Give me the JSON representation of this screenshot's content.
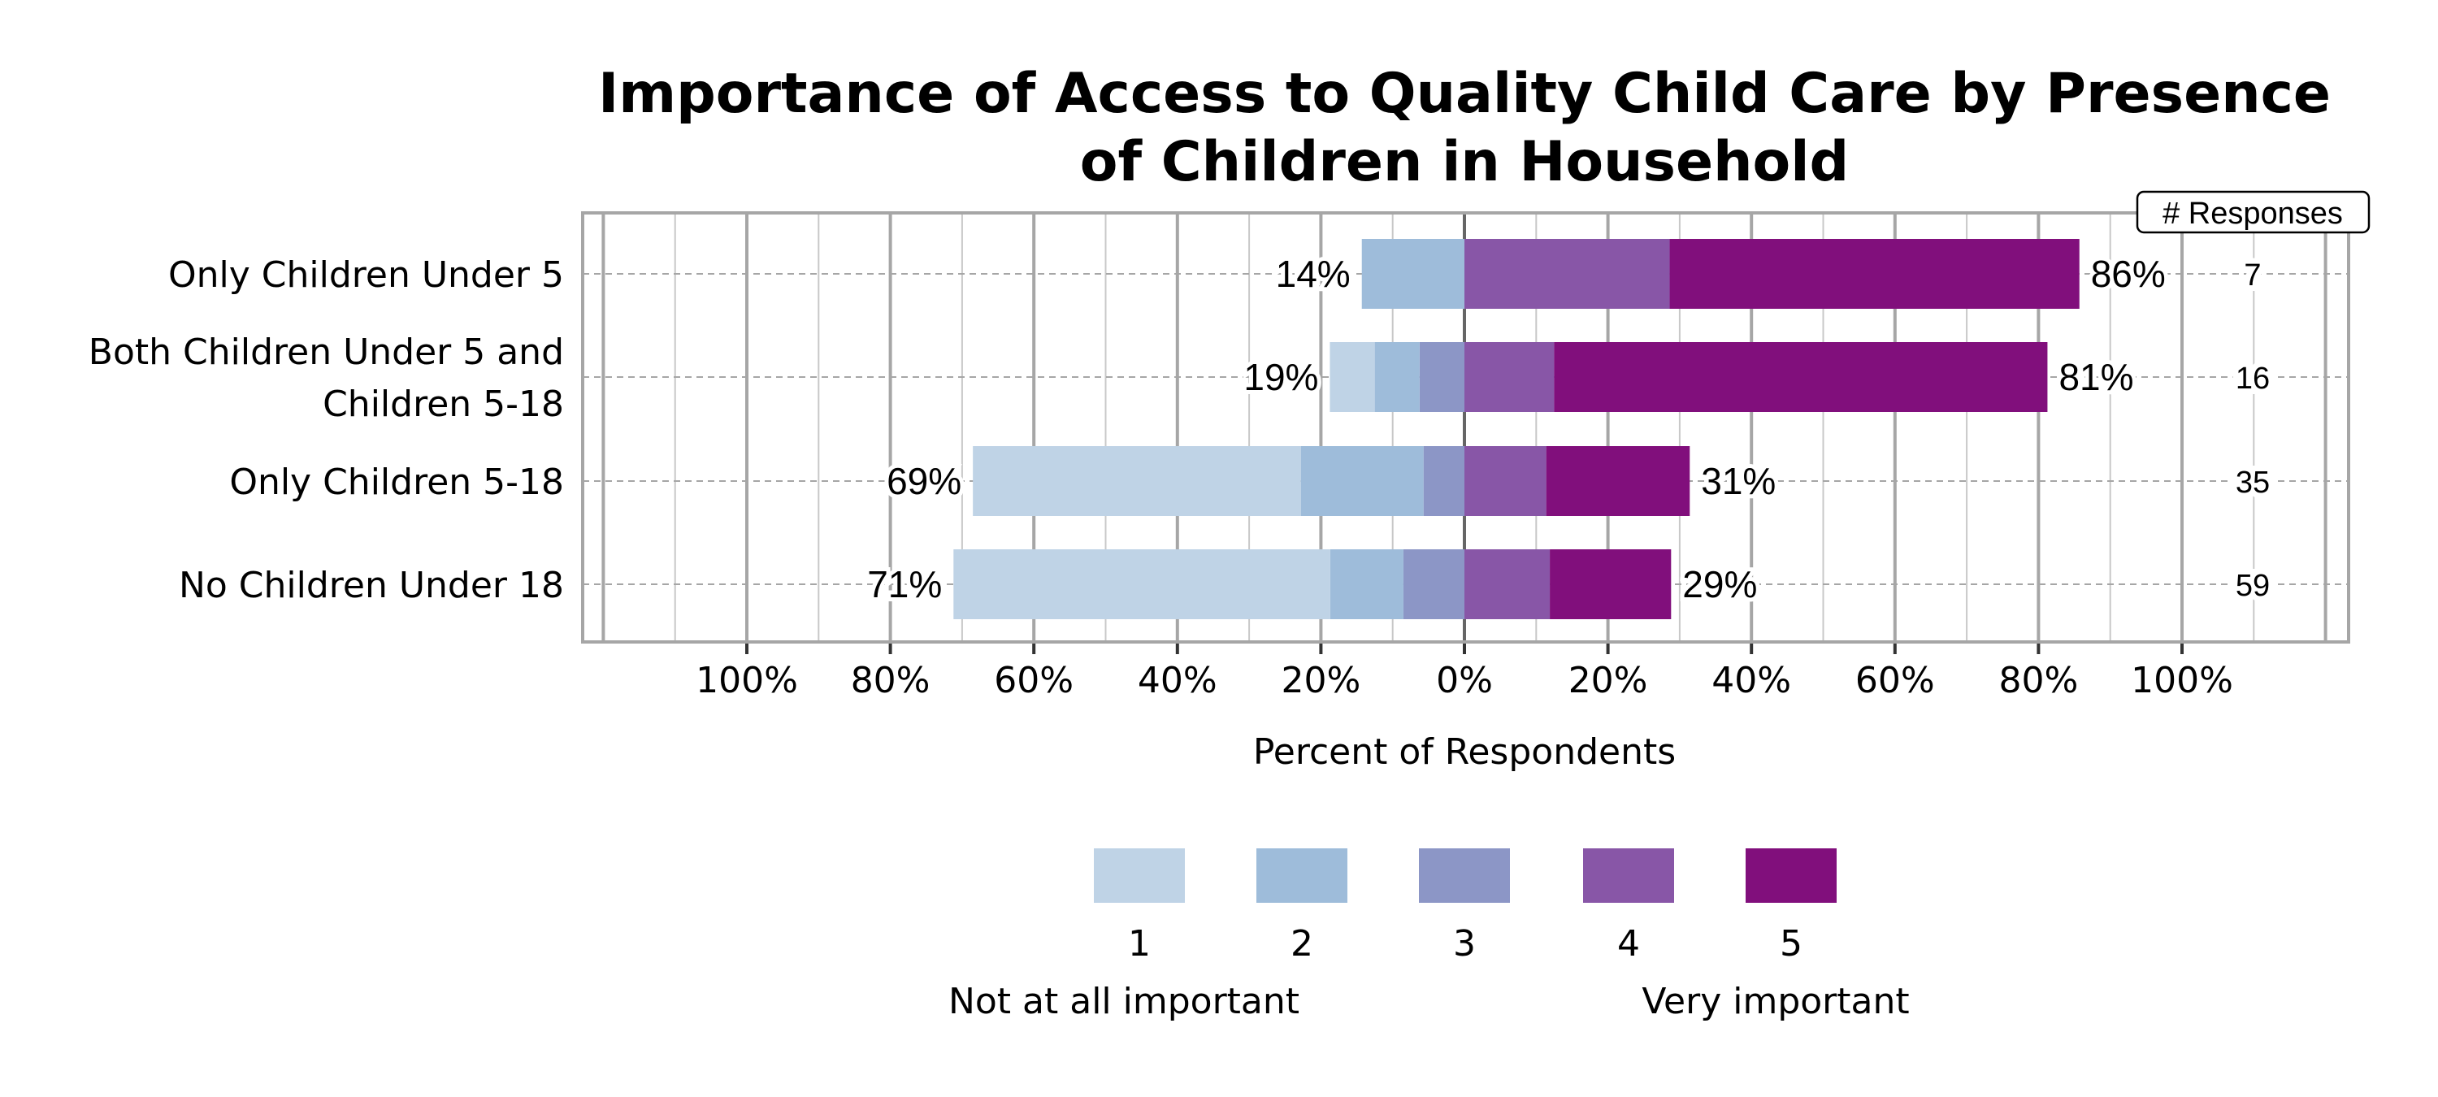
{
  "chart_data": {
    "type": "bar",
    "orientation": "horizontal",
    "stacked": "diverging",
    "title": "Importance of Access to Quality Child Care by Presence of Children in Household",
    "title_lines": [
      "Importance of Access to Quality Child Care by Presence",
      "of Children in Household"
    ],
    "xlabel": "Percent of Respondents",
    "ylabel": "",
    "xlim": [
      -100,
      100
    ],
    "x_tick_labels": [
      "100%",
      "80%",
      "60%",
      "40%",
      "20%",
      "0%",
      "20%",
      "40%",
      "60%",
      "80%",
      "100%"
    ],
    "x_ticks": [
      -100,
      -80,
      -60,
      -40,
      -20,
      0,
      20,
      40,
      60,
      80,
      100
    ],
    "grid": true,
    "categories": [
      "Only Children Under 5",
      "Both Children Under 5 and Children 5-18",
      "Only Children 5-18",
      "No Children Under 18"
    ],
    "category_lines": [
      [
        "Only Children Under 5"
      ],
      [
        "Both Children Under 5 and",
        "Children 5-18"
      ],
      [
        "Only Children 5-18"
      ],
      [
        "No Children Under 18"
      ]
    ],
    "series": [
      {
        "name": "1",
        "color": "#bfd3e6",
        "values": [
          0,
          6.25,
          45.7,
          52.5
        ]
      },
      {
        "name": "2",
        "color": "#9ebcda",
        "values": [
          14.3,
          6.25,
          17.1,
          10.2
        ]
      },
      {
        "name": "3",
        "color": "#8c96c6",
        "values": [
          0,
          6.25,
          5.7,
          8.5
        ]
      },
      {
        "name": "4",
        "color": "#8856a7",
        "values": [
          28.6,
          12.5,
          11.4,
          11.9
        ]
      },
      {
        "name": "5",
        "color": "#810f7c",
        "values": [
          57.1,
          68.75,
          20.0,
          16.9
        ]
      }
    ],
    "negative_series": [
      "1",
      "2",
      "3"
    ],
    "positive_series": [
      "4",
      "5"
    ],
    "left_labels": [
      "14%",
      "19%",
      "69%",
      "71%"
    ],
    "right_labels": [
      "86%",
      "81%",
      "31%",
      "29%"
    ],
    "responses_header": "# Responses",
    "responses": [
      "7",
      "16",
      "35",
      "59"
    ],
    "legend": {
      "placement": "bottom",
      "low_label": "Not at all important",
      "high_label": "Very important"
    }
  }
}
